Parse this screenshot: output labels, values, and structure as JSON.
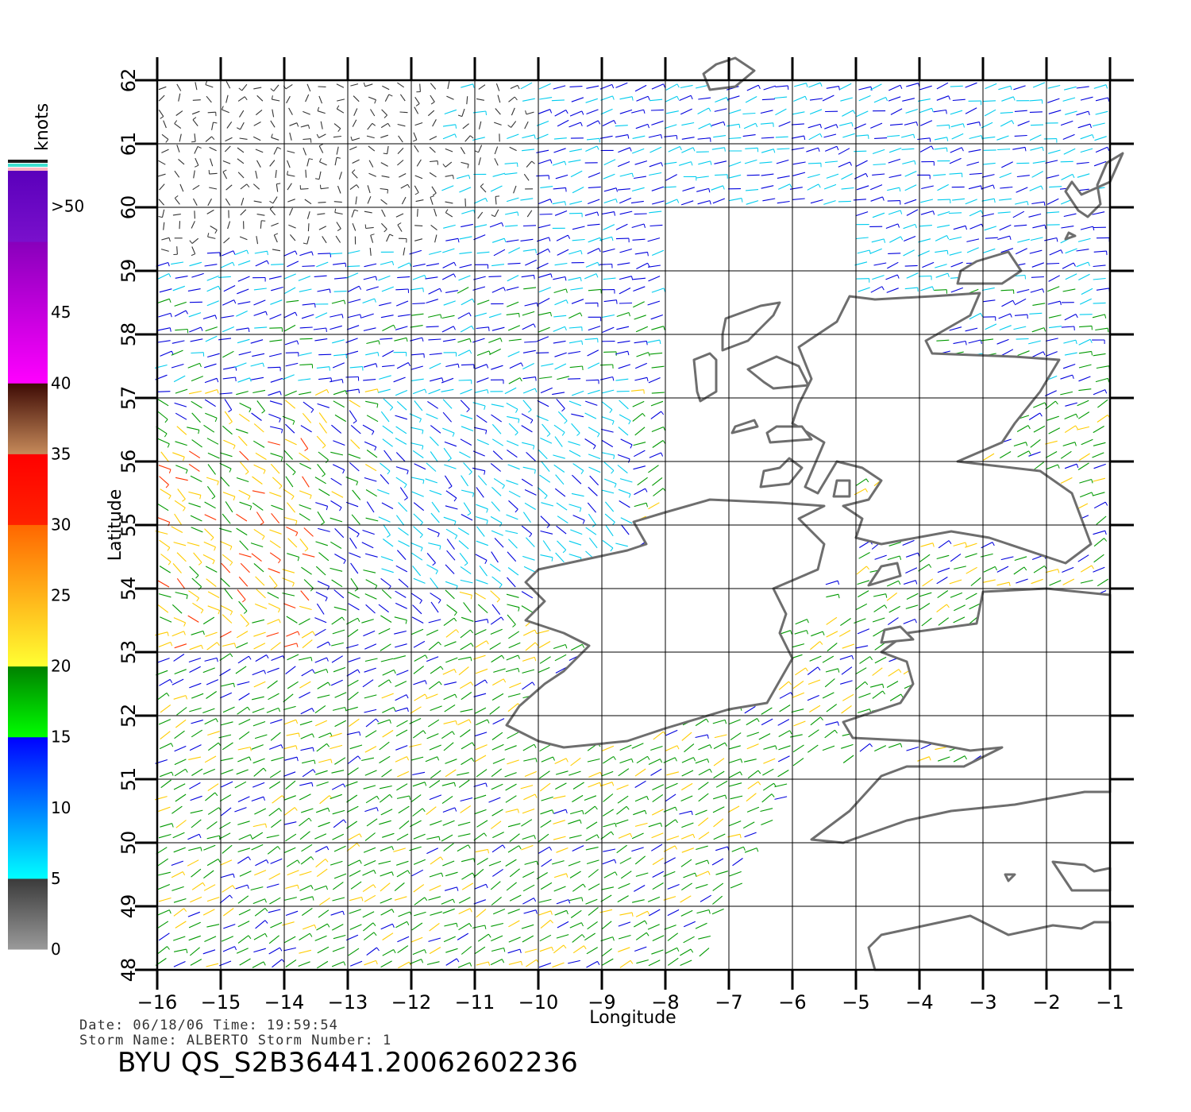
{
  "map": {
    "lon_range": [
      -16,
      -1
    ],
    "lat_range": [
      48,
      62
    ],
    "lon_ticks": [
      -16,
      -15,
      -14,
      -13,
      -12,
      -11,
      -10,
      -9,
      -8,
      -7,
      -6,
      -5,
      -4,
      -3,
      -2,
      -1
    ],
    "lat_ticks": [
      48,
      49,
      50,
      51,
      52,
      53,
      54,
      55,
      56,
      57,
      58,
      59,
      60,
      61,
      62
    ],
    "lon_tick_labels": [
      "−16",
      "−15",
      "−14",
      "−13",
      "−12",
      "−11",
      "−10",
      "−9",
      "−8",
      "−7",
      "−6",
      "−5",
      "−4",
      "−3",
      "−2",
      "−1"
    ],
    "lat_tick_labels": [
      "48",
      "49",
      "50",
      "51",
      "52",
      "53",
      "54",
      "55",
      "56",
      "57",
      "58",
      "59",
      "60",
      "61",
      "62"
    ],
    "xlabel": "Longitude",
    "ylabel": "Latitude",
    "grid": true,
    "coastline_color": "#6e6e6e",
    "content": "QuikSCAT wind vectors over the waters west and north of Ireland and Scotland; land: Ireland, Great Britain, Hebrides, Orkney, Shetland, Faroe Islands, Brittany"
  },
  "colorbar": {
    "unit_label": "knots",
    "labels": [
      ">50",
      "45",
      "40",
      "35",
      "30",
      "25",
      "20",
      "15",
      "10",
      "5",
      "0"
    ],
    "bands": [
      {
        "from": 0,
        "to": 5,
        "top": "#3a3a3a",
        "bottom": "#9a9a9a"
      },
      {
        "from": 5,
        "to": 15,
        "top": "#0000ff",
        "bottom": "#00ffff"
      },
      {
        "from": 15,
        "to": 20,
        "top": "#008000",
        "bottom": "#00ff00"
      },
      {
        "from": 20,
        "to": 30,
        "top": "#ff6600",
        "bottom": "#ffff33"
      },
      {
        "from": 30,
        "to": 35,
        "top": "#ff0000",
        "bottom": "#ff2200"
      },
      {
        "from": 35,
        "to": 40,
        "top": "#3d0a04",
        "bottom": "#c68a5a"
      },
      {
        "from": 40,
        "to": 50,
        "top": "#8800bb",
        "bottom": "#ff00ff"
      },
      {
        "from": 50,
        "to": 55,
        "top": "#5a00bb",
        "bottom": "#7a10cc"
      }
    ],
    "cap_colors": [
      "#ffb6c1",
      "#40e0d0",
      "#1a1a1a"
    ]
  },
  "wind_colors": {
    "calm": "#333333",
    "light": "#00ccee",
    "moderate": "#0000dd",
    "fresh": "#009900",
    "strong": "#ffcc00",
    "gale": "#ff3300"
  },
  "footer": {
    "line1": "Date: 06/18/06   Time: 19:59:54",
    "line2": "Storm Name: ALBERTO   Storm Number: 1",
    "title": "BYU QS_S2B36441.20062602236"
  }
}
